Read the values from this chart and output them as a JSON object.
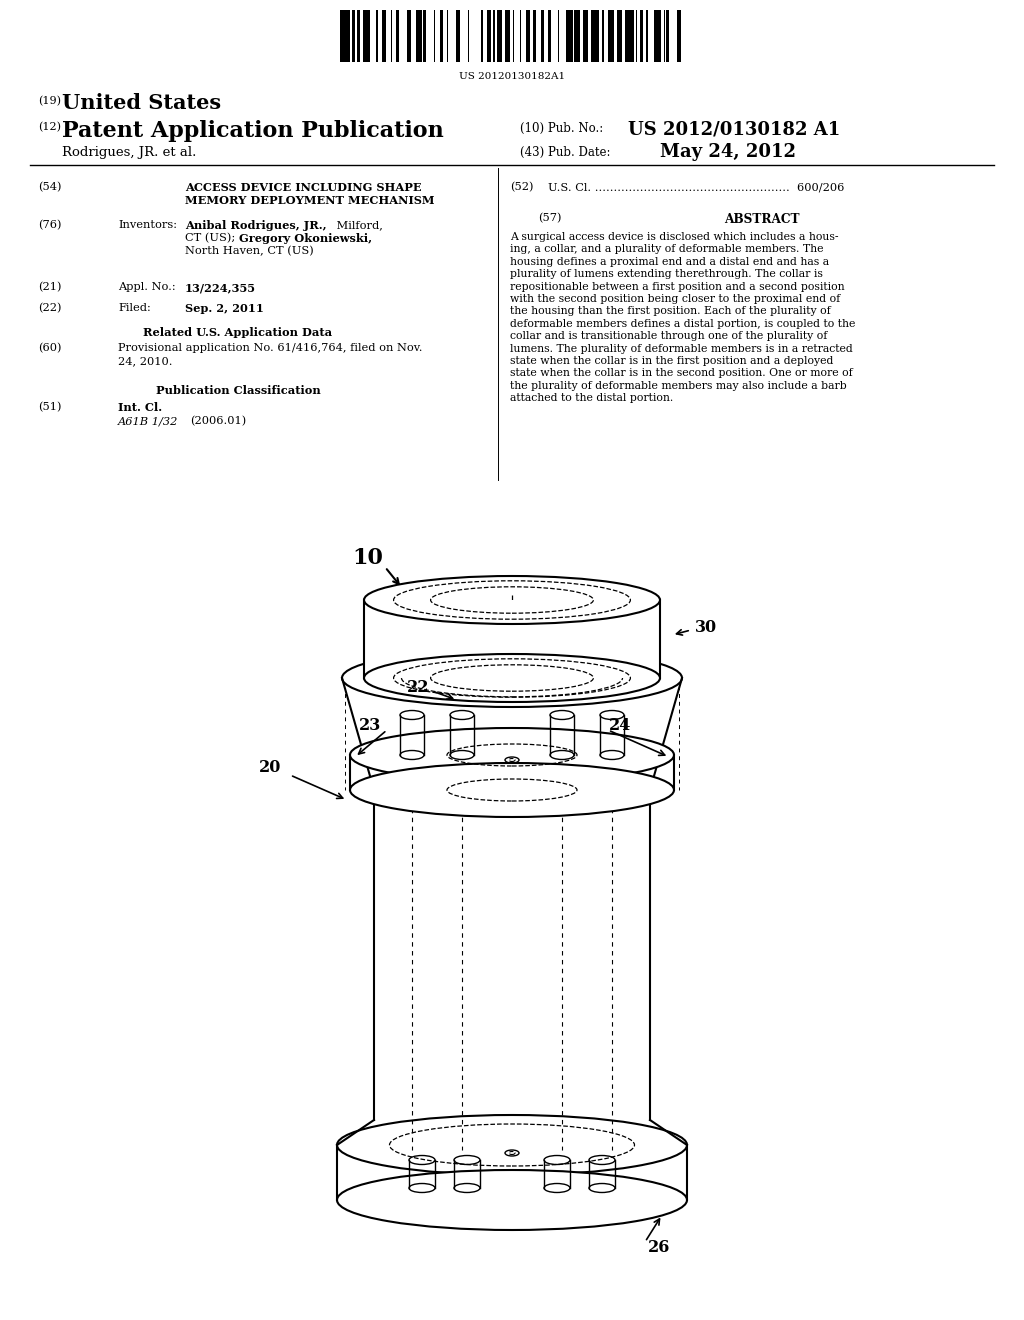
{
  "bg_color": "#ffffff",
  "barcode_text": "US 20120130182A1",
  "header_19": "(19)",
  "header_us": "United States",
  "header_12": "(12)",
  "header_pap": "Patent Application Publication",
  "header_10": "(10) Pub. No.:",
  "header_pubno": "US 2012/0130182 A1",
  "header_43": "(43) Pub. Date:",
  "header_date": "May 24, 2012",
  "header_inventor": "Rodrigues, JR. et al.",
  "f54_num": "(54)",
  "f54_line1": "ACCESS DEVICE INCLUDING SHAPE",
  "f54_line2": "MEMORY DEPLOYMENT MECHANISM",
  "f52_num": "(52)",
  "f52_val": "U.S. Cl. ....................................................  600/206",
  "f76_num": "(76)",
  "f76_label": "Inventors:",
  "f76_name1a": "Anibal Rodrigues, JR.,",
  "f76_name1b": " Milford,",
  "f76_name2a": "CT (US); ",
  "f76_name2b": "Gregory Okoniewski,",
  "f76_name3": "North Haven, CT (US)",
  "f57_num": "(57)",
  "f57_title": "ABSTRACT",
  "abstract_lines": [
    "A surgical access device is disclosed which includes a hous-",
    "ing, a collar, and a plurality of deformable members. The",
    "housing defines a proximal end and a distal end and has a",
    "plurality of lumens extending therethrough. The collar is",
    "repositionable between a first position and a second position",
    "with the second position being closer to the proximal end of",
    "the housing than the first position. Each of the plurality of",
    "deformable members defines a distal portion, is coupled to the",
    "collar and is transitionable through one of the plurality of",
    "lumens. The plurality of deformable members is in a retracted",
    "state when the collar is in the first position and a deployed",
    "state when the collar is in the second position. One or more of",
    "the plurality of deformable members may also include a barb",
    "attached to the distal portion."
  ],
  "f21_num": "(21)",
  "f21_label": "Appl. No.:",
  "f21_val": "13/224,355",
  "f22_num": "(22)",
  "f22_label": "Filed:",
  "f22_val": "Sep. 2, 2011",
  "related_title": "Related U.S. Application Data",
  "f60_num": "(60)",
  "f60_line1": "Provisional application No. 61/416,764, filed on Nov.",
  "f60_line2": "24, 2010.",
  "pubclass_title": "Publication Classification",
  "f51_num": "(51)",
  "f51_label": "Int. Cl.",
  "f51_val": "A61B 1/32",
  "f51_date": "(2006.01)",
  "lbl_10": "10",
  "lbl_20": "20",
  "lbl_22": "22",
  "lbl_23": "23",
  "lbl_24": "24",
  "lbl_26": "26",
  "lbl_30": "30"
}
